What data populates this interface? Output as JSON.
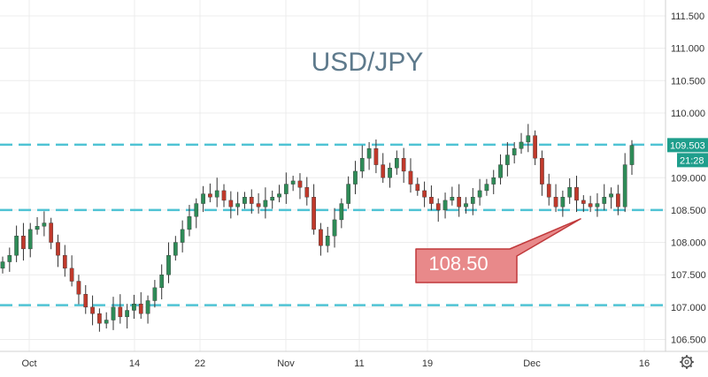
{
  "chart_data": {
    "type": "candlestick",
    "title": "USD/JPY",
    "x_tick_labels": [
      "Oct",
      "14",
      "22",
      "Nov",
      "11",
      "19",
      "Dec",
      "16"
    ],
    "y_tick_labels": [
      "111.500",
      "111.000",
      "110.500",
      "110.000",
      "109.000",
      "108.500",
      "108.000",
      "107.500",
      "107.000",
      "106.500"
    ],
    "ylim": [
      106.3,
      111.75
    ],
    "grid": true,
    "price_label": "109.503",
    "price_value": 109.503,
    "time_label": "21:28",
    "horizontal_levels": [
      109.51,
      108.5,
      107.03
    ],
    "annotation": {
      "text": "108.50",
      "points_to": 108.5
    },
    "up_color": "#2e8b57",
    "down_color": "#c0392b",
    "level_color": "#4fc3d4",
    "price_tag_color": "#1f9e8c",
    "callout_color": "#e8898a",
    "series": [
      {
        "values": [
          107.7,
          107.8,
          108.1,
          107.9,
          108.2,
          108.25,
          108.3,
          108.0,
          107.8,
          107.6,
          107.4,
          107.2,
          107.0,
          106.9,
          106.75,
          106.8,
          107.0,
          106.85,
          106.95,
          107.05,
          106.9,
          107.1,
          107.3,
          107.5,
          107.8,
          108.0,
          108.2,
          108.4,
          108.6,
          108.75,
          108.7,
          108.8,
          108.65,
          108.55,
          108.6,
          108.7,
          108.6,
          108.55,
          108.65,
          108.7,
          108.75,
          108.9,
          108.95,
          108.85,
          108.7,
          108.2,
          107.95,
          108.1,
          108.35,
          108.6,
          108.9,
          109.1,
          109.3,
          109.45,
          109.2,
          109.0,
          109.15,
          109.3,
          109.1,
          108.9,
          108.8,
          108.7,
          108.6,
          108.5,
          108.65,
          108.7,
          108.55,
          108.6,
          108.7,
          108.8,
          108.9,
          109.0,
          109.2,
          109.35,
          109.45,
          109.55,
          109.65,
          109.3,
          108.9,
          108.7,
          108.55,
          108.7,
          108.85,
          108.65,
          108.6,
          108.55,
          108.6,
          108.7,
          108.75,
          108.55,
          109.2,
          109.5
        ]
      }
    ]
  }
}
